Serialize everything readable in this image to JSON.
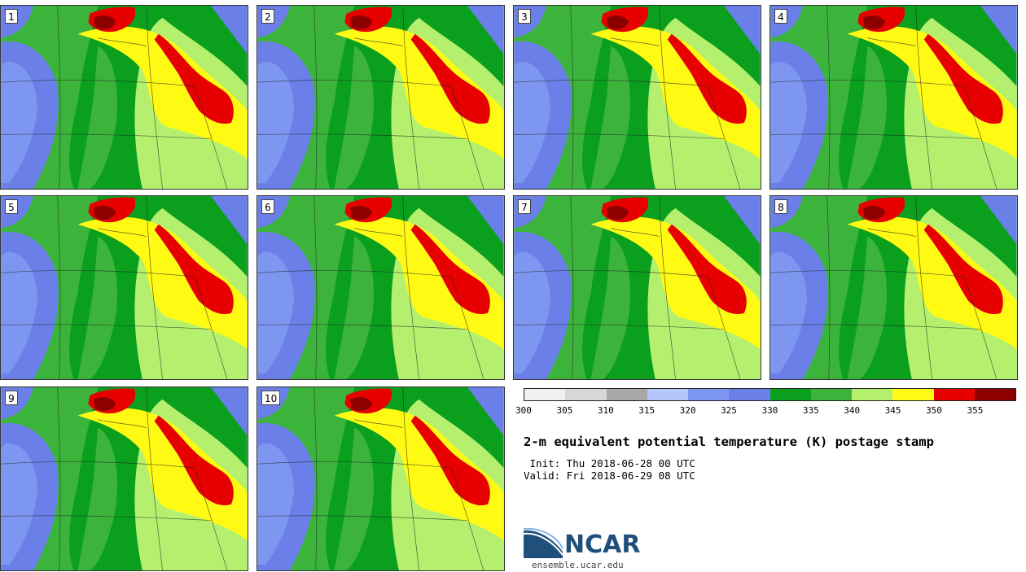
{
  "stamps": [
    {
      "label": "1"
    },
    {
      "label": "2"
    },
    {
      "label": "3"
    },
    {
      "label": "4"
    },
    {
      "label": "5"
    },
    {
      "label": "6"
    },
    {
      "label": "7"
    },
    {
      "label": "8"
    },
    {
      "label": "9"
    },
    {
      "label": "10"
    }
  ],
  "colorbar": {
    "ticks": [
      "300",
      "305",
      "310",
      "315",
      "320",
      "325",
      "330",
      "335",
      "340",
      "345",
      "350",
      "355"
    ],
    "colors": [
      "#f0f0f0",
      "#d7d7d7",
      "#a8a8a8",
      "#b4c6fa",
      "#7d96f0",
      "#6a7fe8",
      "#0aa01e",
      "#3cb43c",
      "#b4f06e",
      "#fffa14",
      "#e60000",
      "#8c0000"
    ]
  },
  "title": "2-m equivalent potential temperature (K) postage stamp",
  "init": " Init: Thu 2018-06-28 00 UTC",
  "valid": "Valid: Fri 2018-06-29 08 UTC",
  "logo": {
    "text": "NCAR",
    "url": "ensemble.ucar.edu"
  }
}
